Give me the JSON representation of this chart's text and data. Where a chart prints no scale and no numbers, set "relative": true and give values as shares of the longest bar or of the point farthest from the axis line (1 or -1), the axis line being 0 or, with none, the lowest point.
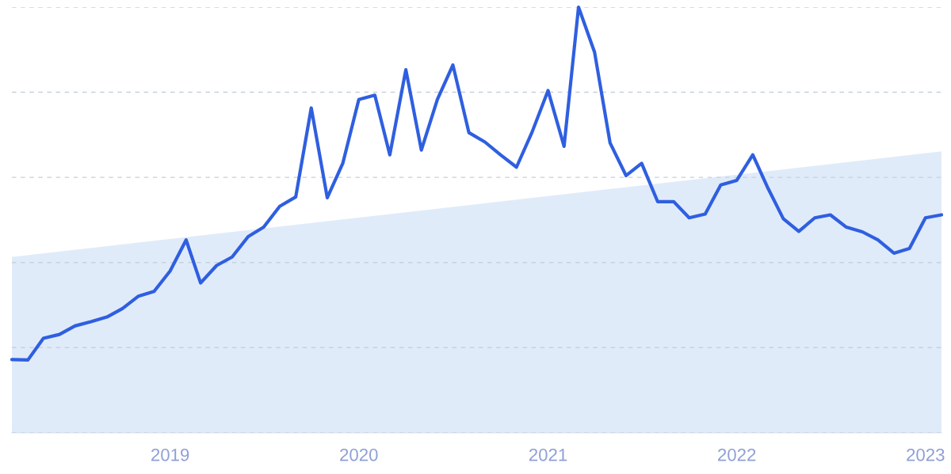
{
  "chart_data": {
    "type": "line",
    "relative": true,
    "grid": "y",
    "marker": "none",
    "line_style": "solid",
    "x": [
      "2018-03",
      "2018-04",
      "2018-05",
      "2018-06",
      "2018-07",
      "2018-08",
      "2018-09",
      "2018-10",
      "2018-11",
      "2018-12",
      "2019-01",
      "2019-02",
      "2019-03",
      "2019-04",
      "2019-05",
      "2019-06",
      "2019-07",
      "2019-08",
      "2019-09",
      "2019-10",
      "2019-11",
      "2019-12",
      "2020-01",
      "2020-02",
      "2020-03",
      "2020-04",
      "2020-05",
      "2020-06",
      "2020-07",
      "2020-08",
      "2020-09",
      "2020-10",
      "2020-11",
      "2020-12",
      "2021-01",
      "2021-02",
      "2021-03",
      "2021-04",
      "2021-05",
      "2021-06",
      "2021-07",
      "2021-08",
      "2021-09",
      "2021-10",
      "2021-11",
      "2021-12",
      "2022-01",
      "2022-02",
      "2022-03",
      "2022-04",
      "2022-05",
      "2022-06",
      "2022-07",
      "2022-08",
      "2022-09",
      "2022-10",
      "2022-11",
      "2022-12",
      "2023-01",
      "2023-02"
    ],
    "xlim": [
      "2018-03",
      "2023-02"
    ],
    "xticks": [
      {
        "value": "2019-01",
        "label": "2019"
      },
      {
        "value": "2020-01",
        "label": "2020"
      },
      {
        "value": "2021-01",
        "label": "2021"
      },
      {
        "value": "2022-01",
        "label": "2022"
      },
      {
        "value": "2023-01",
        "label": "2023"
      }
    ],
    "series": [
      {
        "type": "area",
        "color": "#dde9f9",
        "x": [
          "2018-03",
          "2023-02"
        ],
        "values": [
          0.413,
          0.661
        ]
      },
      {
        "color": "#2f5fe0",
        "values": [
          0.172,
          0.171,
          0.222,
          0.231,
          0.251,
          0.261,
          0.272,
          0.292,
          0.321,
          0.332,
          0.38,
          0.453,
          0.352,
          0.393,
          0.413,
          0.461,
          0.483,
          0.532,
          0.554,
          0.763,
          0.552,
          0.633,
          0.783,
          0.793,
          0.653,
          0.853,
          0.664,
          0.783,
          0.864,
          0.705,
          0.683,
          0.653,
          0.624,
          0.706,
          0.804,
          0.673,
          1,
          0.894,
          0.681,
          0.604,
          0.633,
          0.543,
          0.543,
          0.505,
          0.514,
          0.582,
          0.593,
          0.653,
          0.578,
          0.503,
          0.473,
          0.505,
          0.512,
          0.483,
          0.472,
          0.453,
          0.422,
          0.433,
          0.505,
          0.512
        ]
      }
    ]
  }
}
